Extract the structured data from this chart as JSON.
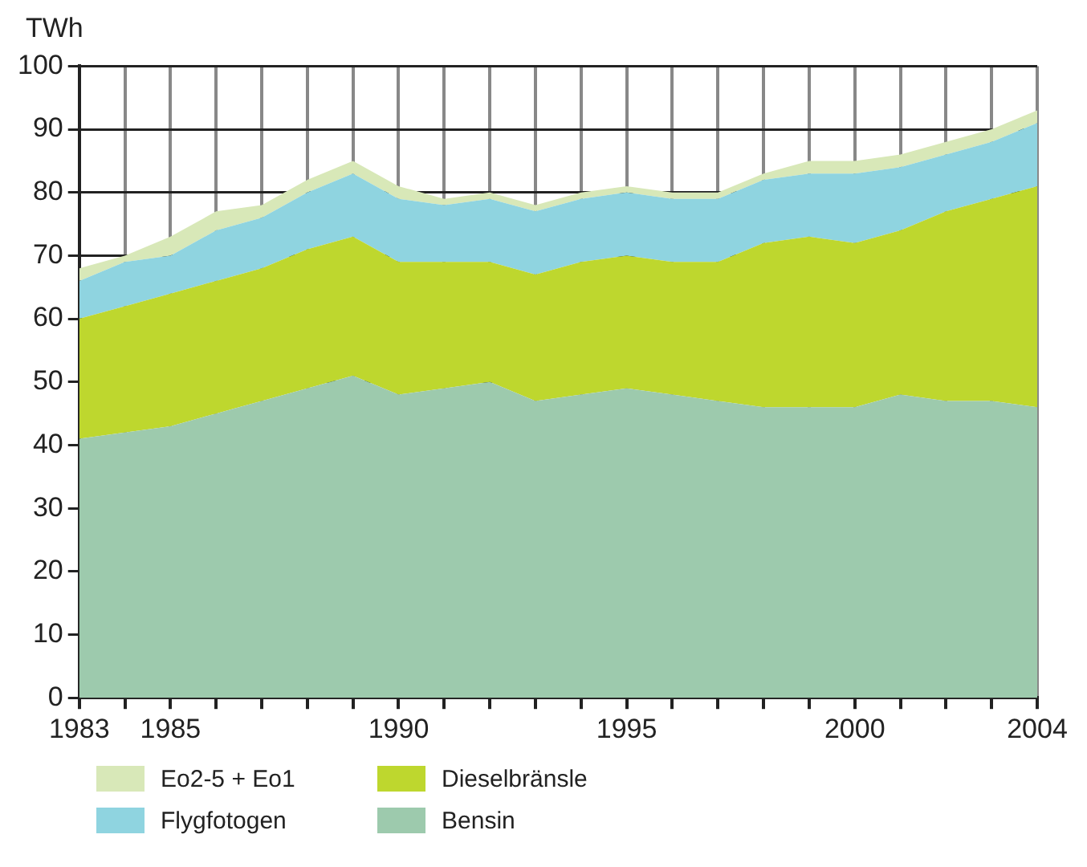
{
  "chart_data": {
    "type": "area",
    "ylabel": "TWh",
    "stacked": true,
    "grid": true,
    "legend": "bottom",
    "marker": "none",
    "x": [
      1983,
      1984,
      1985,
      1986,
      1987,
      1988,
      1989,
      1990,
      1991,
      1992,
      1993,
      1994,
      1995,
      1996,
      1997,
      1998,
      1999,
      2000,
      2001,
      2002,
      2003,
      2004
    ],
    "xlim": [
      1983,
      2004
    ],
    "xticks": [
      1983,
      {
        "value": 1984,
        "label": null
      },
      1985,
      {
        "value": 1986,
        "label": null
      },
      {
        "value": 1987,
        "label": null
      },
      {
        "value": 1988,
        "label": null
      },
      {
        "value": 1989,
        "label": null
      },
      1990,
      {
        "value": 1991,
        "label": null
      },
      {
        "value": 1992,
        "label": null
      },
      {
        "value": 1993,
        "label": null
      },
      {
        "value": 1994,
        "label": null
      },
      1995,
      {
        "value": 1996,
        "label": null
      },
      {
        "value": 1997,
        "label": null
      },
      {
        "value": 1998,
        "label": null
      },
      {
        "value": 1999,
        "label": null
      },
      2000,
      {
        "value": 2001,
        "label": null
      },
      {
        "value": 2002,
        "label": null
      },
      {
        "value": 2003,
        "label": null
      },
      2004
    ],
    "ylim": [
      0,
      100
    ],
    "yticks": [
      0,
      10,
      20,
      30,
      40,
      50,
      60,
      70,
      80,
      90,
      100
    ],
    "series": [
      {
        "name": "Bensin",
        "color": "#9dcaad",
        "values": [
          41,
          42,
          43,
          45,
          47,
          49,
          51,
          48,
          49,
          50,
          47,
          48,
          49,
          48,
          47,
          46,
          46,
          46,
          48,
          47,
          47,
          46
        ]
      },
      {
        "name": "Dieselbränsle",
        "color": "#bed72e",
        "values": [
          19,
          20,
          21,
          21,
          21,
          22,
          22,
          21,
          20,
          19,
          20,
          21,
          21,
          21,
          22,
          26,
          27,
          26,
          26,
          30,
          32,
          35
        ]
      },
      {
        "name": "Flygfotogen",
        "color": "#8fd4e0",
        "values": [
          6,
          7,
          6,
          8,
          8,
          9,
          10,
          10,
          9,
          10,
          10,
          10,
          10,
          10,
          10,
          10,
          10,
          11,
          10,
          9,
          9,
          10
        ]
      },
      {
        "name": "Eo2-5 + Eo1",
        "color": "#d8e8b8",
        "values": [
          2,
          1,
          3,
          3,
          2,
          2,
          2,
          2,
          1,
          1,
          1,
          1,
          1,
          1,
          1,
          1,
          2,
          2,
          2,
          2,
          2,
          2
        ]
      }
    ]
  }
}
